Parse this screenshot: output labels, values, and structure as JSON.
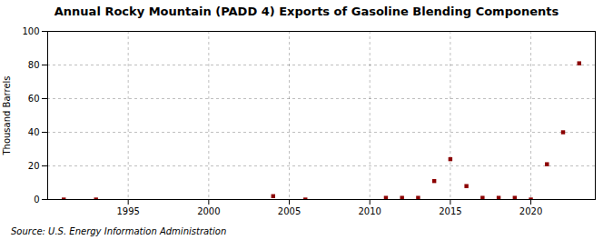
{
  "chart_data": {
    "type": "scatter",
    "title": "Annual Rocky Mountain (PADD 4) Exports of Gasoline Blending Components",
    "ylabel": "Thousand Barrels",
    "source": "Source: U.S. Energy Information Administration",
    "x": [
      1991,
      1993,
      2004,
      2006,
      2011,
      2012,
      2013,
      2014,
      2015,
      2016,
      2017,
      2018,
      2019,
      2020,
      2021,
      2022,
      2023
    ],
    "values": [
      0,
      0,
      2,
      0,
      1,
      1,
      1,
      11,
      24,
      8,
      1,
      1,
      1,
      0,
      21,
      40,
      81
    ],
    "color": "#8b0000",
    "marker": "square",
    "xlim": [
      1990,
      2024
    ],
    "xticks": [
      1995,
      2000,
      2005,
      2010,
      2015,
      2020
    ],
    "ylim": [
      0,
      100
    ],
    "yticks": [
      0,
      20,
      40,
      60,
      80,
      100
    ],
    "grid": true
  }
}
